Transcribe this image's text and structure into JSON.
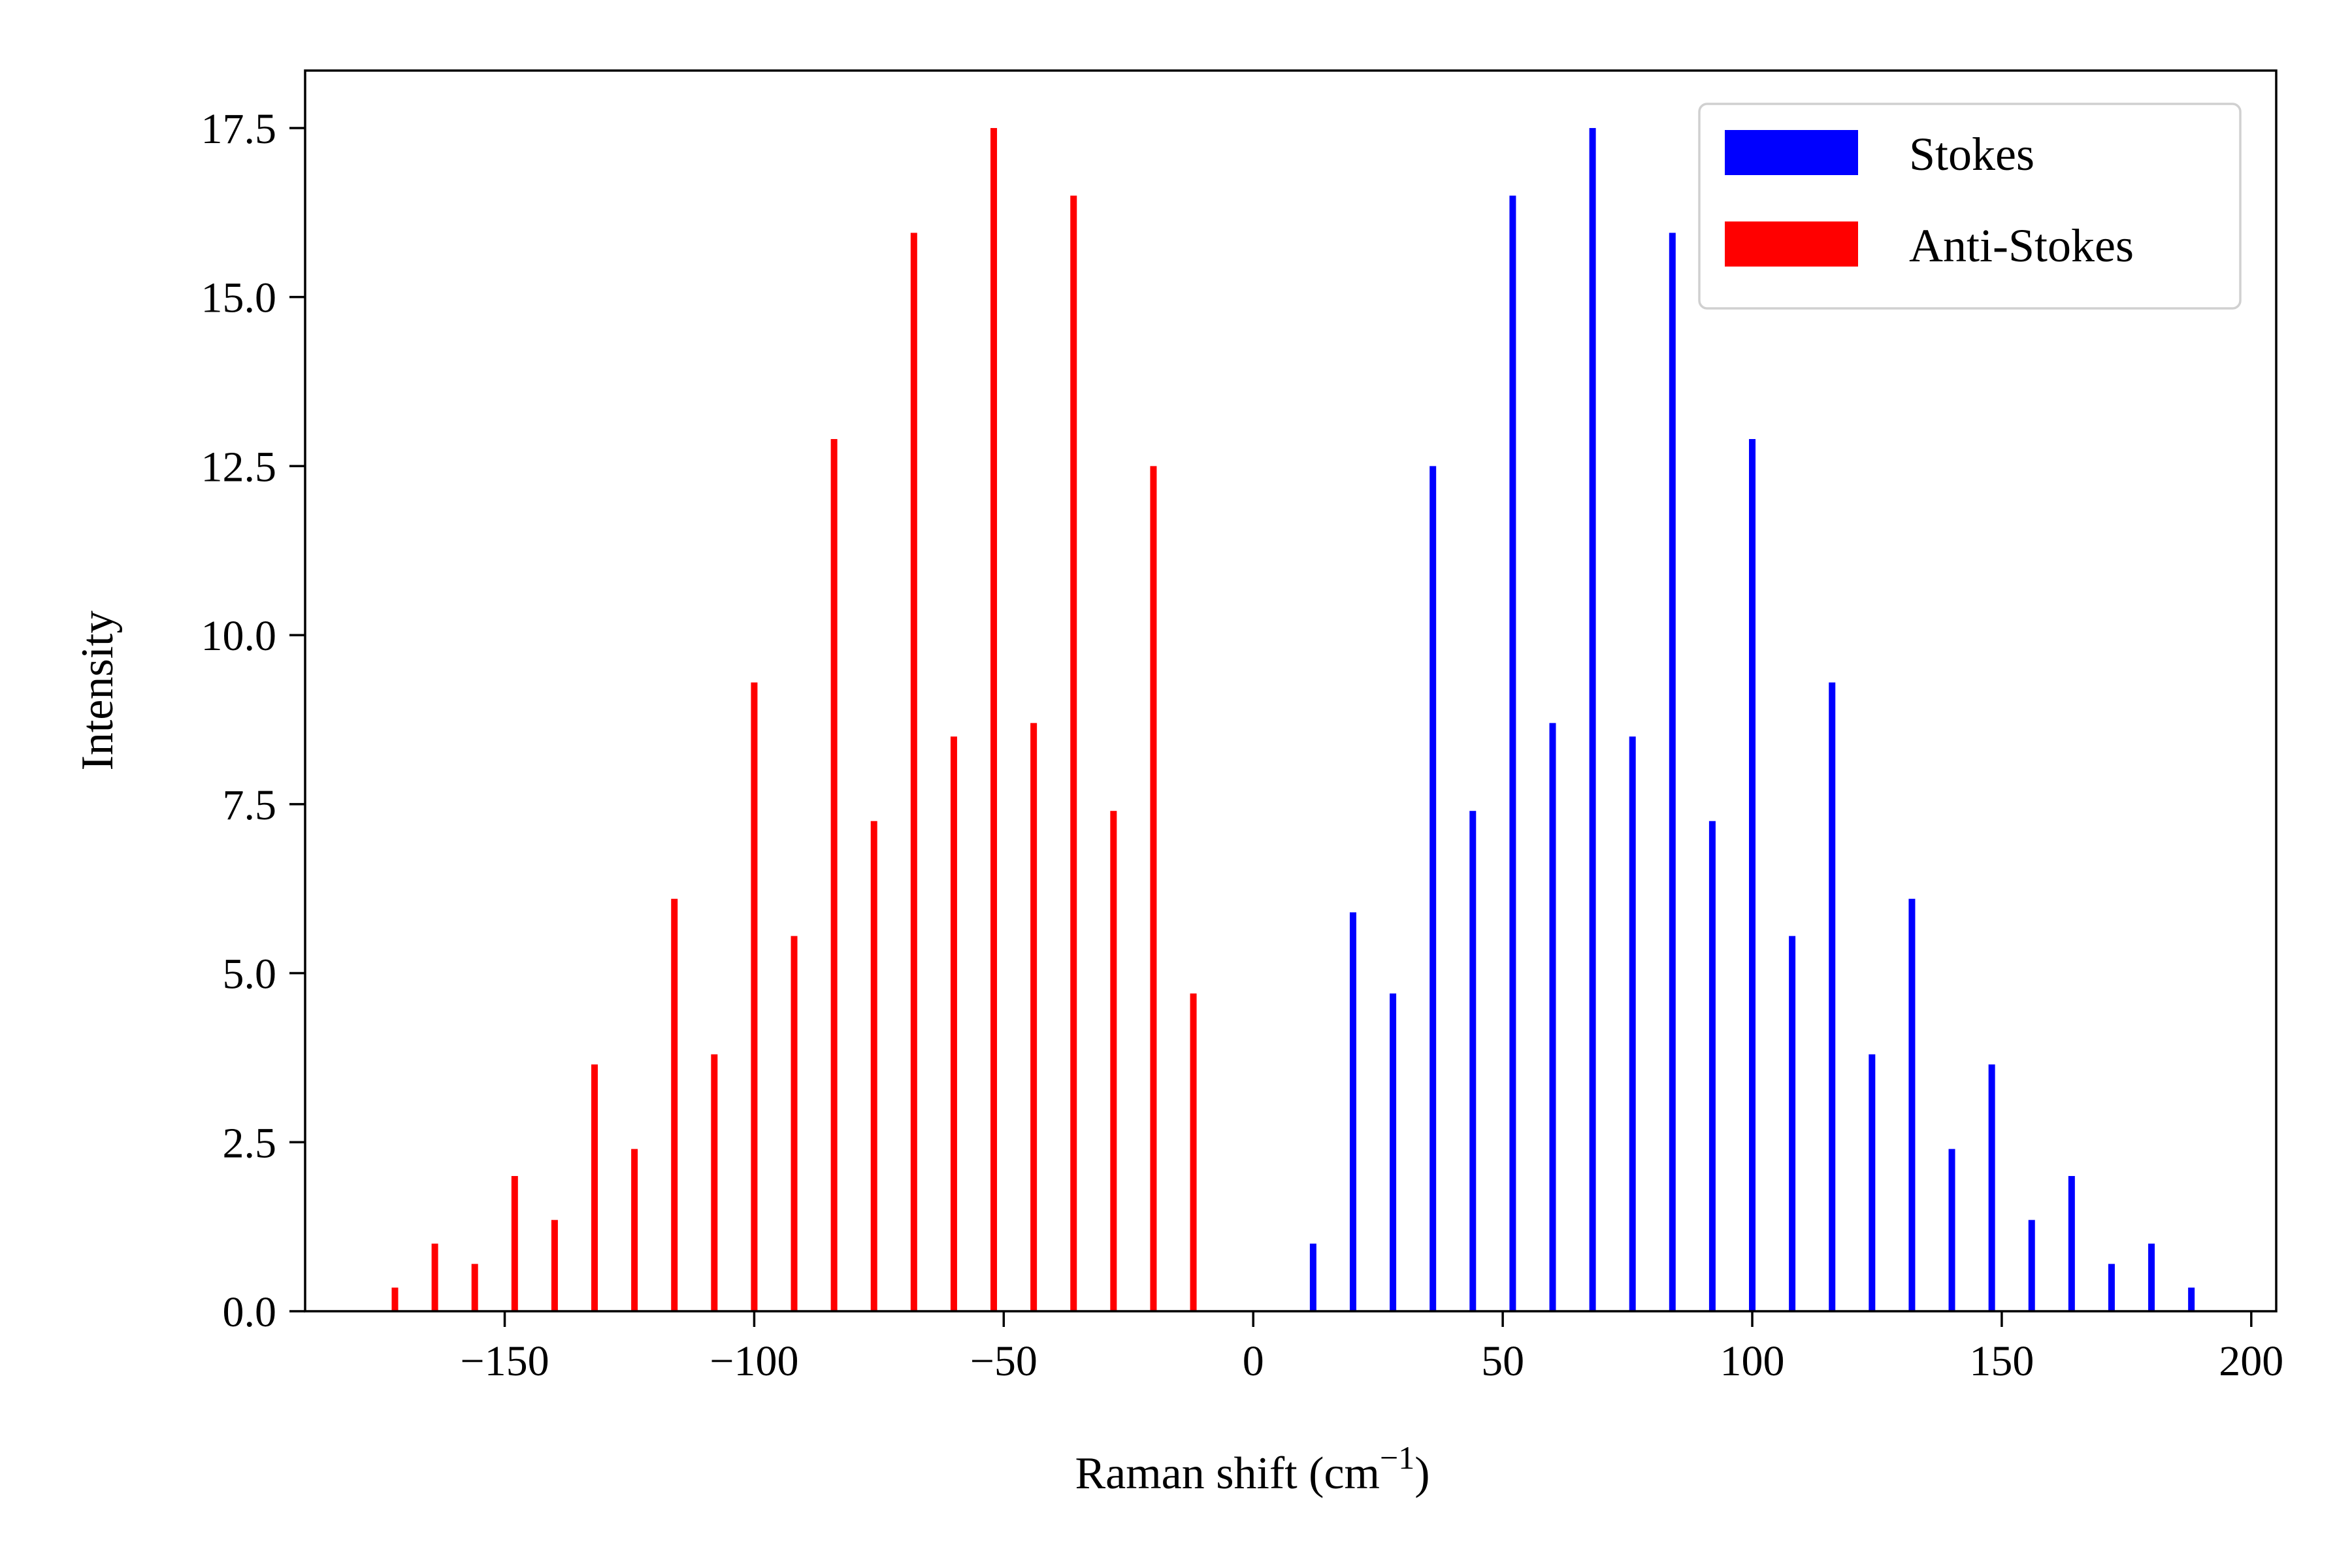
{
  "chart_data": {
    "type": "bar",
    "xlabel": "Raman shift (cm",
    "xlabel_superscript": "−1",
    "xlabel_suffix": ")",
    "ylabel": "Intensity",
    "xlim": [
      -190,
      205
    ],
    "ylim": [
      0,
      18.35
    ],
    "xticks": [
      -150,
      -100,
      -50,
      0,
      50,
      100,
      150,
      200
    ],
    "xtick_labels": [
      "−150",
      "−100",
      "−50",
      "0",
      "50",
      "100",
      "150",
      "200"
    ],
    "yticks": [
      0,
      2.5,
      5,
      7.5,
      10,
      12.5,
      15,
      17.5
    ],
    "ytick_labels": [
      "0.0",
      "2.5",
      "5.0",
      "7.5",
      "10.0",
      "12.5",
      "15.0",
      "17.5"
    ],
    "grid": false,
    "legend_position": "top-right",
    "series": [
      {
        "name": "Stokes",
        "color": "#0000ff",
        "x": [
          12,
          20,
          28,
          36,
          44,
          52,
          60,
          68,
          76,
          84,
          92,
          100,
          108,
          116,
          124,
          132,
          140,
          148,
          156,
          164,
          172,
          180,
          188
        ],
        "values": [
          1.0,
          5.9,
          4.7,
          12.5,
          7.4,
          16.5,
          8.7,
          17.5,
          8.5,
          15.95,
          7.25,
          12.9,
          5.55,
          9.3,
          3.8,
          6.1,
          2.4,
          3.65,
          1.35,
          2.0,
          0.7,
          1.0,
          0.35
        ]
      },
      {
        "name": "Anti-Stokes",
        "color": "#ff0000",
        "x": [
          -12,
          -20,
          -28,
          -36,
          -44,
          -52,
          -60,
          -68,
          -76,
          -84,
          -92,
          -100,
          -108,
          -116,
          -124,
          -132,
          -140,
          -148,
          -156,
          -164,
          -172
        ],
        "values": [
          4.7,
          12.5,
          7.4,
          16.5,
          8.7,
          17.5,
          8.5,
          15.95,
          7.25,
          12.9,
          5.55,
          9.3,
          3.8,
          6.1,
          2.4,
          3.65,
          1.35,
          2.0,
          0.7,
          1.0,
          0.35
        ]
      }
    ]
  }
}
